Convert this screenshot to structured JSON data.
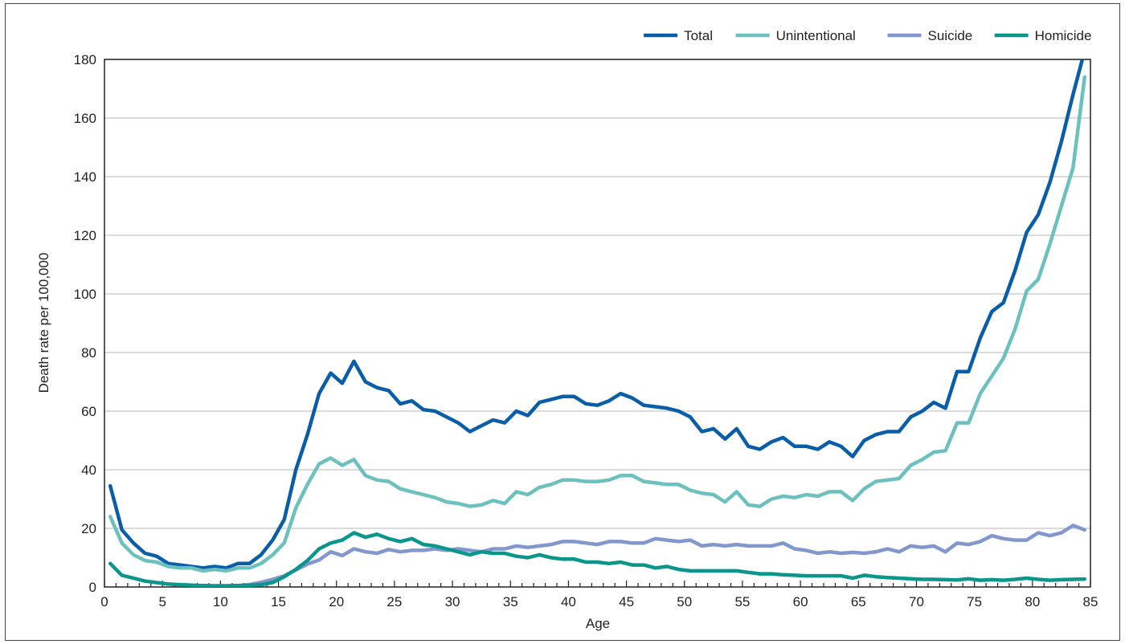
{
  "chart_data": {
    "type": "line",
    "title": "",
    "xlabel": "Age",
    "ylabel": "Death rate per 100,000",
    "xlim": [
      0,
      85
    ],
    "ylim": [
      0,
      180
    ],
    "x_ticks": [
      0,
      5,
      10,
      15,
      20,
      25,
      30,
      35,
      40,
      45,
      50,
      55,
      60,
      65,
      70,
      75,
      80,
      85
    ],
    "y_ticks": [
      0,
      20,
      40,
      60,
      80,
      100,
      120,
      140,
      160,
      180
    ],
    "grid": "horizontal",
    "legend_position": "top-right",
    "x": [
      0,
      1,
      2,
      3,
      4,
      5,
      6,
      7,
      8,
      9,
      10,
      11,
      12,
      13,
      14,
      15,
      16,
      17,
      18,
      19,
      20,
      21,
      22,
      23,
      24,
      25,
      26,
      27,
      28,
      29,
      30,
      31,
      32,
      33,
      34,
      35,
      36,
      37,
      38,
      39,
      40,
      41,
      42,
      43,
      44,
      45,
      46,
      47,
      48,
      49,
      50,
      51,
      52,
      53,
      54,
      55,
      56,
      57,
      58,
      59,
      60,
      61,
      62,
      63,
      64,
      65,
      66,
      67,
      68,
      69,
      70,
      71,
      72,
      73,
      74,
      75,
      76,
      77,
      78,
      79,
      80,
      81,
      82,
      83,
      84
    ],
    "series": [
      {
        "name": "Total",
        "color": "#0a5ea8",
        "values": [
          34.5,
          19.5,
          15,
          11.5,
          10.5,
          8,
          7.5,
          7,
          6.5,
          7,
          6.5,
          8,
          8,
          11,
          16,
          23,
          40,
          52,
          66,
          73,
          69.5,
          77,
          70,
          68,
          67,
          62.5,
          63.5,
          60.5,
          60,
          58,
          56,
          53,
          55,
          57,
          56,
          60,
          58.5,
          63,
          64,
          65,
          65,
          62.5,
          62,
          63.5,
          66,
          64.5,
          62,
          61.5,
          61,
          60,
          58,
          53,
          54,
          50.5,
          54,
          48,
          47,
          49.5,
          51,
          48,
          48,
          47,
          49.5,
          48,
          44.5,
          50,
          52,
          53,
          53,
          58,
          60,
          63,
          61,
          73.5,
          73.5,
          85,
          94,
          97,
          108,
          121,
          127,
          138,
          152,
          168,
          183
        ]
      },
      {
        "name": "Unintentional",
        "color": "#6cc0be",
        "values": [
          24,
          15,
          11,
          9,
          8.5,
          7,
          6.5,
          6.5,
          5.5,
          6,
          5.5,
          6.5,
          6.5,
          8,
          11,
          15,
          27,
          35,
          42,
          44,
          41.5,
          43.5,
          38,
          36.5,
          36,
          33.5,
          32.5,
          31.5,
          30.5,
          29,
          28.5,
          27.5,
          28,
          29.5,
          28.5,
          32.5,
          31.5,
          34,
          35,
          36.5,
          36.5,
          36,
          36,
          36.5,
          38,
          38,
          36,
          35.5,
          35,
          35,
          33,
          32,
          31.5,
          29,
          32.5,
          28,
          27.5,
          30,
          31,
          30.5,
          31.5,
          31,
          32.5,
          32.5,
          29.5,
          33.5,
          36,
          36.5,
          37,
          41.5,
          43.5,
          46,
          46.5,
          56,
          56,
          66,
          72,
          78,
          88,
          101,
          105,
          117,
          130,
          143,
          174
        ]
      },
      {
        "name": "Suicide",
        "color": "#8297cc",
        "values": [
          null,
          null,
          null,
          null,
          null,
          null,
          null,
          null,
          0.3,
          0.3,
          0.3,
          0.5,
          0.8,
          1.6,
          2.6,
          3.8,
          5.8,
          7.8,
          9.2,
          12,
          10.7,
          13,
          12,
          11.5,
          12.8,
          12,
          12.5,
          12.5,
          13,
          12.5,
          13,
          12.5,
          12,
          13,
          13,
          14,
          13.5,
          14,
          14.5,
          15.5,
          15.5,
          15,
          14.5,
          15.5,
          15.5,
          15,
          15,
          16.5,
          16,
          15.5,
          16,
          14,
          14.5,
          14,
          14.5,
          14,
          14,
          14,
          15,
          13,
          12.5,
          11.5,
          12,
          11.5,
          11.8,
          11.5,
          12,
          13,
          12,
          14,
          13.5,
          14,
          12,
          15,
          14.5,
          15.5,
          17.5,
          16.5,
          16,
          16,
          18.5,
          17.5,
          18.5,
          21,
          19.5
        ]
      },
      {
        "name": "Homicide",
        "color": "#0a968a",
        "values": [
          8,
          4,
          3,
          2,
          1.5,
          1,
          0.8,
          0.6,
          0.5,
          0.4,
          0.4,
          0.5,
          0.6,
          0.8,
          1.5,
          3.5,
          6,
          9,
          13,
          15,
          16,
          18.5,
          17,
          18,
          16.5,
          15.5,
          16.5,
          14.5,
          14,
          13,
          12,
          11,
          12,
          11.5,
          11.5,
          10.5,
          10,
          11,
          10,
          9.5,
          9.5,
          8.5,
          8.5,
          8,
          8.5,
          7.5,
          7.5,
          6.5,
          7,
          6,
          5.5,
          5.5,
          5.5,
          5.5,
          5.5,
          5,
          4.5,
          4.5,
          4.2,
          4,
          3.8,
          3.8,
          3.8,
          3.8,
          3,
          4,
          3.5,
          3.2,
          3,
          2.8,
          2.6,
          2.6,
          2.5,
          2.4,
          2.8,
          2.3,
          2.5,
          2.3,
          2.6,
          3,
          2.6,
          2.3,
          2.5,
          2.6,
          2.7
        ]
      }
    ]
  }
}
